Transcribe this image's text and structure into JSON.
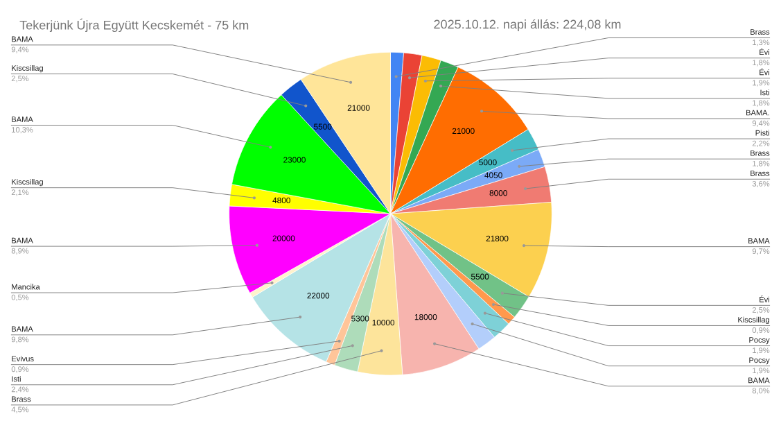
{
  "chart_data": {
    "type": "pie",
    "title": "Tekerjünk Újra Együtt Kecskemét - 75 km",
    "subtitle": "2025.10.12. napi állás: 224,08 km",
    "categories": [
      "Brass",
      "Évi",
      "Évi",
      "Isti",
      "BAMA.",
      "Pisti",
      "Brass",
      "Brass",
      "BAMA",
      "Évi",
      "Kiscsillag",
      "Pocsy",
      "Pocsy",
      "BAMA",
      "Brass",
      "Isti",
      "Evivus",
      "BAMA",
      "Mancika",
      "BAMA",
      "Kiscsillag",
      "BAMA",
      "Kiscsillag",
      "BAMA"
    ],
    "values": [
      2930,
      4100,
      4300,
      4100,
      21000,
      5000,
      4050,
      8000,
      21800,
      5500,
      2000,
      4300,
      4300,
      18000,
      10000,
      5300,
      2000,
      22000,
      1100,
      20000,
      4800,
      23000,
      5500,
      21000
    ],
    "colors": [
      "#4285f4",
      "#ea4335",
      "#fbbc04",
      "#34a853",
      "#ff6d01",
      "#46bdc6",
      "#7baaf7",
      "#f07b72",
      "#fcd04f",
      "#71c287",
      "#ff994d",
      "#7ed1d7",
      "#b3cefb",
      "#f7b4ae",
      "#fde49b",
      "#aedcba",
      "#ffc599",
      "#b5e3e6",
      "#fff2cc",
      "#ff00ff",
      "#ffff00",
      "#00ff00",
      "#1155cc",
      "#ffe599"
    ],
    "value_labels": [
      null,
      null,
      null,
      null,
      "21000",
      "5000",
      "4050",
      "8000",
      "21800",
      "5500",
      null,
      null,
      null,
      "18000",
      "10000",
      "5300",
      null,
      "22000",
      null,
      "20000",
      "4800",
      "23000",
      "5500",
      "21000"
    ],
    "annotations": [
      "1,3%",
      "1,8%",
      "1,9%",
      "1,8%",
      "9,4%",
      "2,2%",
      "1,8%",
      "3,6%",
      "9,7%",
      "2,5%",
      "0,9%",
      "1,9%",
      "1,9%",
      "8,0%",
      "4,5%",
      "2,4%",
      "0,9%",
      "9,8%",
      "0,5%",
      "8,9%",
      "2,1%",
      "10,3%",
      "2,5%",
      "9,4%"
    ]
  }
}
